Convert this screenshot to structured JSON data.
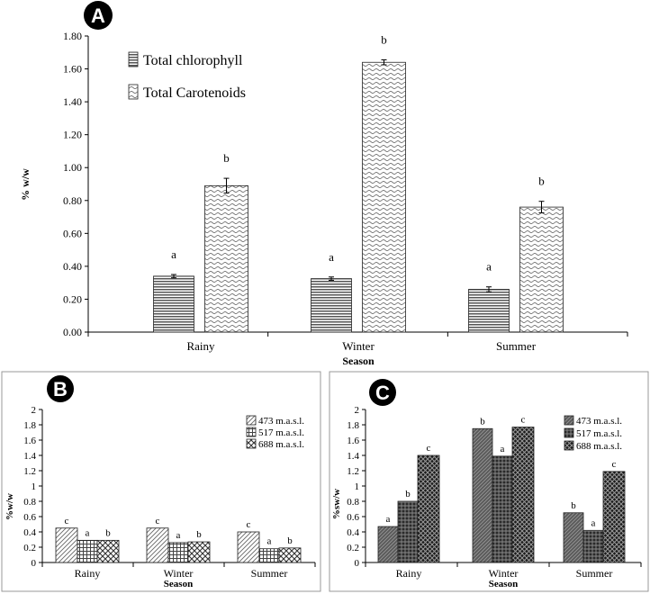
{
  "chart_data": [
    {
      "panel": "A",
      "type": "bar",
      "title": "",
      "xlabel": "Season",
      "ylabel": "% w/w",
      "ylim": [
        0,
        1.8
      ],
      "yticks": [
        "0.00",
        "0.20",
        "0.40",
        "0.60",
        "0.80",
        "1.00",
        "1.20",
        "1.40",
        "1.60",
        "1.80"
      ],
      "categories": [
        "Rainy",
        "Winter",
        "Summer"
      ],
      "series": [
        {
          "name": "Total chlorophyll",
          "values": [
            0.34,
            0.325,
            0.26
          ],
          "errors": [
            0.01,
            0.01,
            0.015
          ],
          "labels": [
            "a",
            "a",
            "a"
          ]
        },
        {
          "name": "Total Carotenoids",
          "values": [
            0.89,
            1.64,
            0.76
          ],
          "errors": [
            0.045,
            0.015,
            0.035
          ],
          "labels": [
            "b",
            "b",
            "b"
          ]
        }
      ],
      "legend_position": "top-left",
      "grid": false
    },
    {
      "panel": "B",
      "type": "bar",
      "title": "",
      "xlabel": "Season",
      "ylabel": "%w/w",
      "ylim": [
        0,
        2
      ],
      "yticks": [
        "0",
        "0.2",
        "0.4",
        "0.6",
        "0.8",
        "1",
        "1.2",
        "1.4",
        "1.6",
        "1.8",
        "2"
      ],
      "categories": [
        "Rainy",
        "Winter",
        "Summer"
      ],
      "series": [
        {
          "name": "473 m.a.s.l.",
          "values": [
            0.45,
            0.45,
            0.4
          ],
          "labels": [
            "c",
            "c",
            "c"
          ]
        },
        {
          "name": "517 m.a.s.l.",
          "values": [
            0.29,
            0.26,
            0.18
          ],
          "labels": [
            "a",
            "a",
            "a"
          ]
        },
        {
          "name": "688 m.a.s.l.",
          "values": [
            0.29,
            0.27,
            0.19
          ],
          "labels": [
            "b",
            "b",
            "b"
          ]
        }
      ],
      "legend_position": "top-right",
      "grid": false
    },
    {
      "panel": "C",
      "type": "bar",
      "title": "",
      "xlabel": "Season",
      "ylabel": "%sw/w",
      "ylim": [
        0,
        2
      ],
      "yticks": [
        "0",
        "0.2",
        "0.4",
        "0.6",
        "0.8",
        "1",
        "1.2",
        "1.4",
        "1.6",
        "1.8",
        "2"
      ],
      "categories": [
        "Rainy",
        "Winter",
        "Summer"
      ],
      "series": [
        {
          "name": "473 m.a.s.l.",
          "values": [
            0.47,
            1.75,
            0.65
          ],
          "labels": [
            "a",
            "b",
            "b"
          ]
        },
        {
          "name": "517 m.a.s.l.",
          "values": [
            0.8,
            1.39,
            0.42
          ],
          "labels": [
            "b",
            "a",
            "a"
          ]
        },
        {
          "name": "688 m.a.s.l.",
          "values": [
            1.4,
            1.77,
            1.19
          ],
          "labels": [
            "c",
            "c",
            "c"
          ]
        }
      ],
      "legend_position": "top-right",
      "grid": false
    }
  ],
  "panel_badges": [
    "A",
    "B",
    "C"
  ]
}
